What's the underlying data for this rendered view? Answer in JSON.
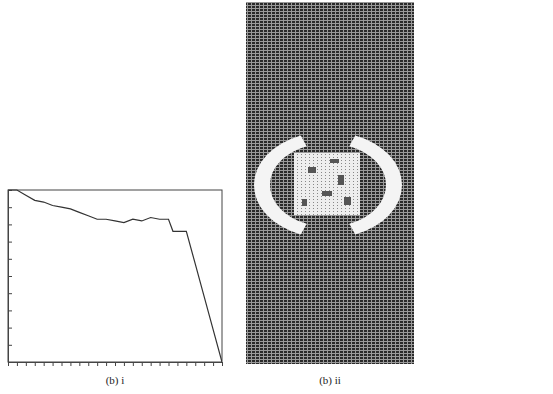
{
  "chart_data": {
    "type": "line",
    "title": "(b) i",
    "x": [
      0,
      1,
      2,
      3,
      4,
      5,
      6,
      7,
      8,
      9,
      10,
      11,
      12,
      13,
      14,
      15,
      16,
      17,
      18,
      18.5,
      19,
      20,
      21,
      22,
      23,
      24
    ],
    "values": [
      10,
      10,
      9.7,
      9.4,
      9.3,
      9.1,
      9.0,
      8.9,
      8.7,
      8.5,
      8.3,
      8.3,
      8.2,
      8.1,
      8.3,
      8.2,
      8.4,
      8.3,
      8.3,
      7.6,
      7.6,
      7.6,
      5.7,
      3.8,
      1.9,
      0
    ],
    "color": "#333333",
    "xlim": [
      0,
      24
    ],
    "xticks": [
      0,
      1,
      2,
      3,
      4,
      5,
      6,
      7,
      8,
      9,
      10,
      11,
      12,
      13,
      14,
      15,
      16,
      17,
      18,
      19,
      20,
      21,
      22,
      23,
      24
    ],
    "ylim": [
      0,
      10
    ],
    "yticks": [
      0,
      1,
      2,
      3,
      4,
      5,
      6,
      7,
      8,
      9,
      10
    ],
    "grid": false,
    "tick_labels": false
  },
  "image_panel": {
    "caption": "(b) ii"
  }
}
